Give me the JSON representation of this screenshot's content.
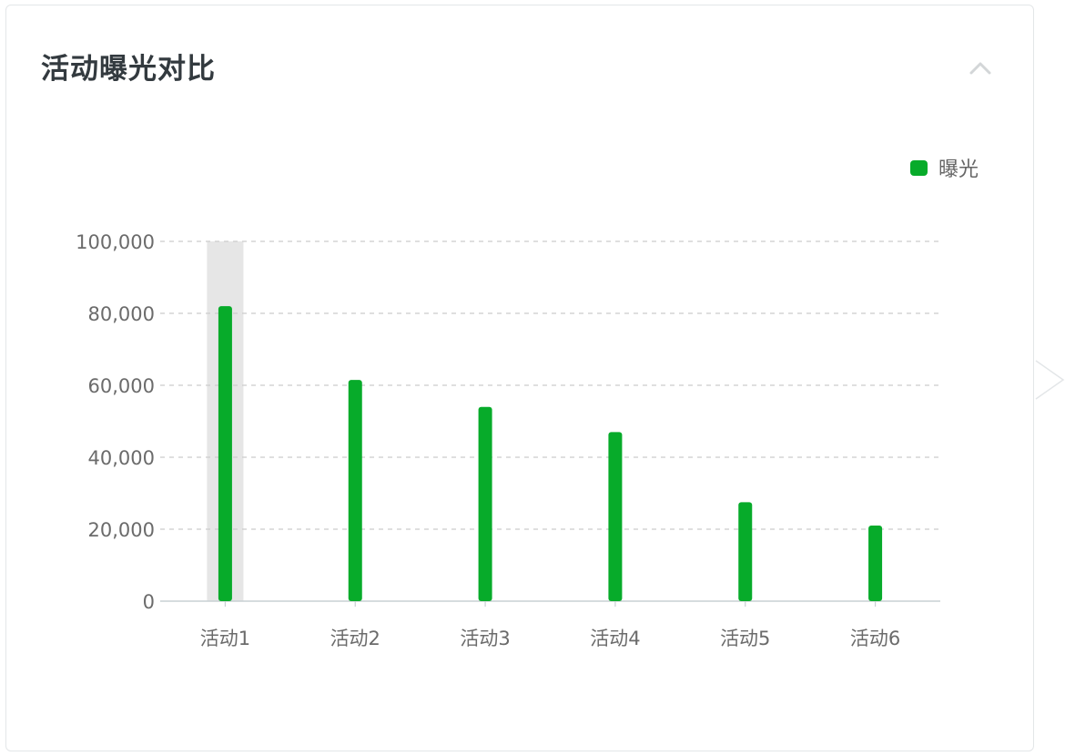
{
  "card": {
    "title": "活动曝光对比"
  },
  "legend": {
    "series_label": "曝光",
    "color": "#07ab2a"
  },
  "highlight_color": "#e6e6e6",
  "icons": {
    "collapse": "chevron-up-icon"
  },
  "chart_data": {
    "type": "bar",
    "categories": [
      "活动1",
      "活动2",
      "活动3",
      "活动4",
      "活动5",
      "活动6"
    ],
    "series": [
      {
        "name": "曝光",
        "values": [
          82000,
          61500,
          54000,
          47000,
          27500,
          21000
        ],
        "color": "#07ab2a"
      }
    ],
    "ylim": [
      0,
      100000
    ],
    "yticks": [
      0,
      20000,
      40000,
      60000,
      80000,
      100000
    ],
    "ytick_labels": [
      "0",
      "20,000",
      "40,000",
      "60,000",
      "80,000",
      "100,000"
    ],
    "grid": "horizontal dashed",
    "legend_position": "top-right",
    "highlighted_category": "活动1"
  }
}
